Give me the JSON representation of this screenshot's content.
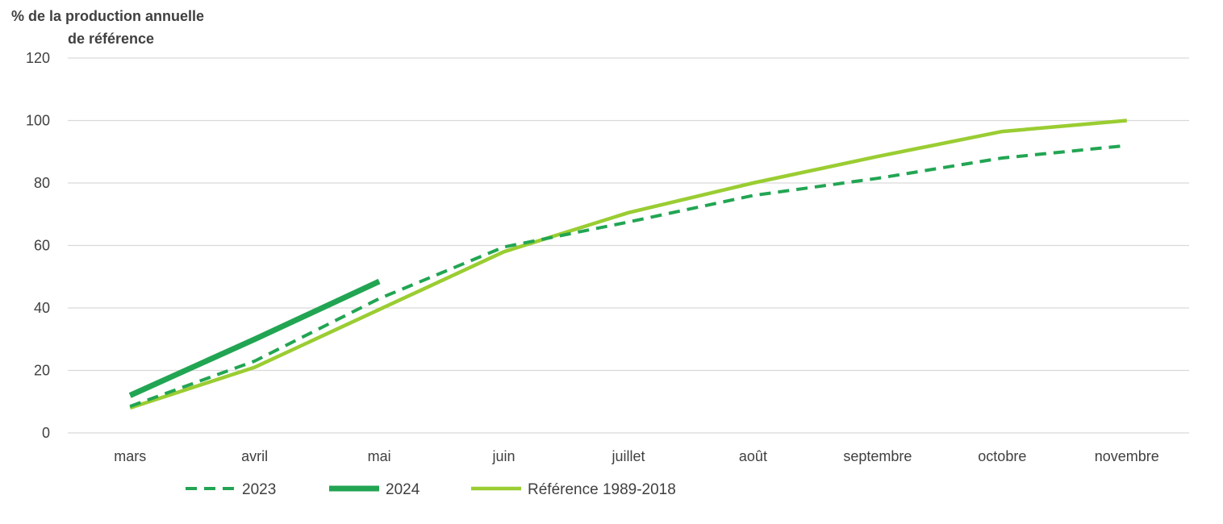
{
  "chart_data": {
    "type": "line",
    "ylabel_lines": [
      "% de  la production  annuelle",
      "de référence"
    ],
    "categories": [
      "mars",
      "avril",
      "mai",
      "juin",
      "juillet",
      "août",
      "septembre",
      "octobre",
      "novembre"
    ],
    "ylim": [
      0,
      120
    ],
    "yticks": [
      "0",
      "20",
      "40",
      "60",
      "80",
      "100",
      "120"
    ],
    "grid": true,
    "legend_position": "bottom",
    "series": [
      {
        "name": "2023",
        "color": "#22A553",
        "style": "dashed",
        "values": [
          8.5,
          23,
          43,
          59.5,
          67.5,
          76,
          81.5,
          88,
          92
        ]
      },
      {
        "name": "2024",
        "color": "#22A553",
        "style": "solid-thick",
        "values": [
          12,
          30,
          48.5,
          null,
          null,
          null,
          null,
          null,
          null
        ]
      },
      {
        "name": "Référence 1989-2018",
        "color": "#9ACD32",
        "style": "solid",
        "values": [
          8,
          21,
          39.5,
          58,
          70.5,
          80,
          88.5,
          96.5,
          100
        ]
      }
    ]
  }
}
